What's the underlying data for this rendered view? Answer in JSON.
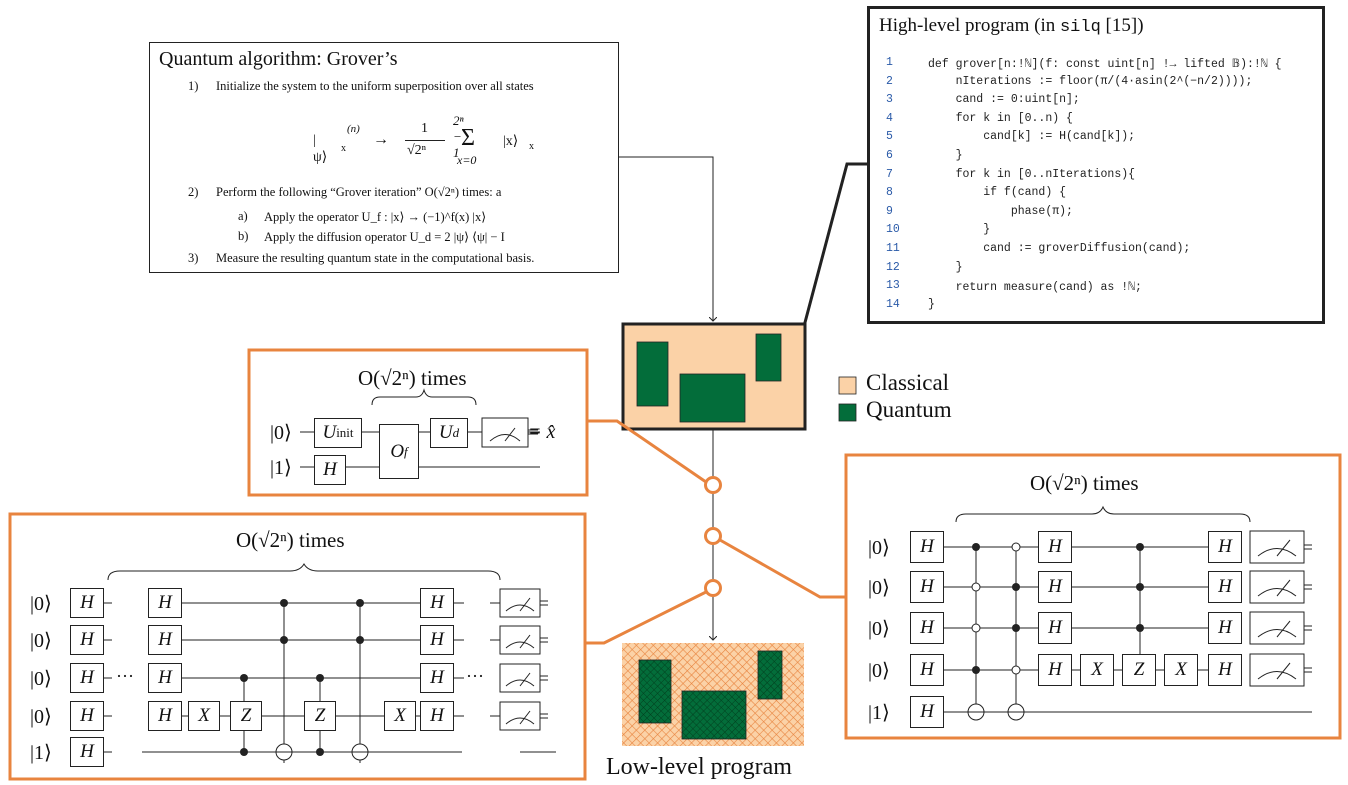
{
  "algorithm": {
    "title": "Quantum algorithm: Grover’s",
    "step1_num": "1)",
    "step1": "Initialize the system to the uniform superposition over all states",
    "eq1_lhs": "|ψ⟩",
    "eq1_sub": "x",
    "eq1_sup": "(n)",
    "eq1_arrow": "→",
    "eq1_frac_num": "1",
    "eq1_frac_den": "√2ⁿ",
    "eq1_sum_top": "2ⁿ − 1",
    "eq1_sum": "Σ",
    "eq1_sum_bottom": "x=0",
    "eq1_rhs": "|x⟩",
    "eq1_rhs_sub": "x",
    "step2_num": "2)",
    "step2": "Perform the following “Grover iteration” O(√2ⁿ) times: a",
    "step2a_num": "a)",
    "step2a": "Apply the operator U_f : |x⟩ → (−1)^f(x) |x⟩",
    "step2b_num": "b)",
    "step2b": "Apply the diffusion operator U_d = 2 |ψ⟩ ⟨ψ| − I",
    "step3_num": "3)",
    "step3": "Measure the resulting quantum state in the computational basis."
  },
  "code": {
    "title_prefix": "High-level program (in ",
    "title_lang": "silq",
    "title_suffix": " [15])",
    "lines": [
      {
        "n": "1",
        "text": "def grover[n:!ℕ](f: const uint[n] !→ lifted 𝔹):!ℕ {"
      },
      {
        "n": "2",
        "text": "    nIterations := floor(π/(4·asin(2^(−n/2))));"
      },
      {
        "n": "3",
        "text": "    cand := 0:uint[n];"
      },
      {
        "n": "4",
        "text": "    for k in [0..n) {"
      },
      {
        "n": "5",
        "text": "        cand[k] := H(cand[k]);"
      },
      {
        "n": "6",
        "text": "    }"
      },
      {
        "n": "7",
        "text": "    for k in [0..nIterations){"
      },
      {
        "n": "8",
        "text": "        if f(cand) {"
      },
      {
        "n": "9",
        "text": "            phase(π);"
      },
      {
        "n": "10",
        "text": "        }"
      },
      {
        "n": "11",
        "text": "        cand := groverDiffusion(cand);"
      },
      {
        "n": "12",
        "text": "    }"
      },
      {
        "n": "13",
        "text": "    return measure(cand) as !ℕ;"
      },
      {
        "n": "14",
        "text": "}"
      }
    ]
  },
  "legend": {
    "classical": "Classical",
    "quantum": "Quantum",
    "classical_color": "#fbd2a7",
    "quantum_color": "#036d3a"
  },
  "colors": {
    "orange": "#e8843f",
    "dark": "#222222"
  },
  "top_circuit": {
    "times": "O(√2ⁿ) times",
    "ket0": "|0⟩",
    "ket1": "|1⟩",
    "u_init": "U",
    "u_init_sub": "init",
    "o_f": "O",
    "o_f_sub": "f",
    "u_d": "U",
    "u_d_sub": "d",
    "h": "H",
    "output": "= x̂"
  },
  "left_circuit": {
    "times": "O(√2ⁿ) times",
    "kets": [
      "|0⟩",
      "|0⟩",
      "|0⟩",
      "|0⟩",
      "|1⟩"
    ],
    "h": "H",
    "x": "X",
    "z": "Z",
    "dots": "···"
  },
  "right_circuit": {
    "times": "O(√2ⁿ) times",
    "kets": [
      "|0⟩",
      "|0⟩",
      "|0⟩",
      "|0⟩",
      "|1⟩"
    ],
    "h": "H",
    "x": "X",
    "z": "Z"
  },
  "low_level": {
    "label": "Low-level program"
  }
}
